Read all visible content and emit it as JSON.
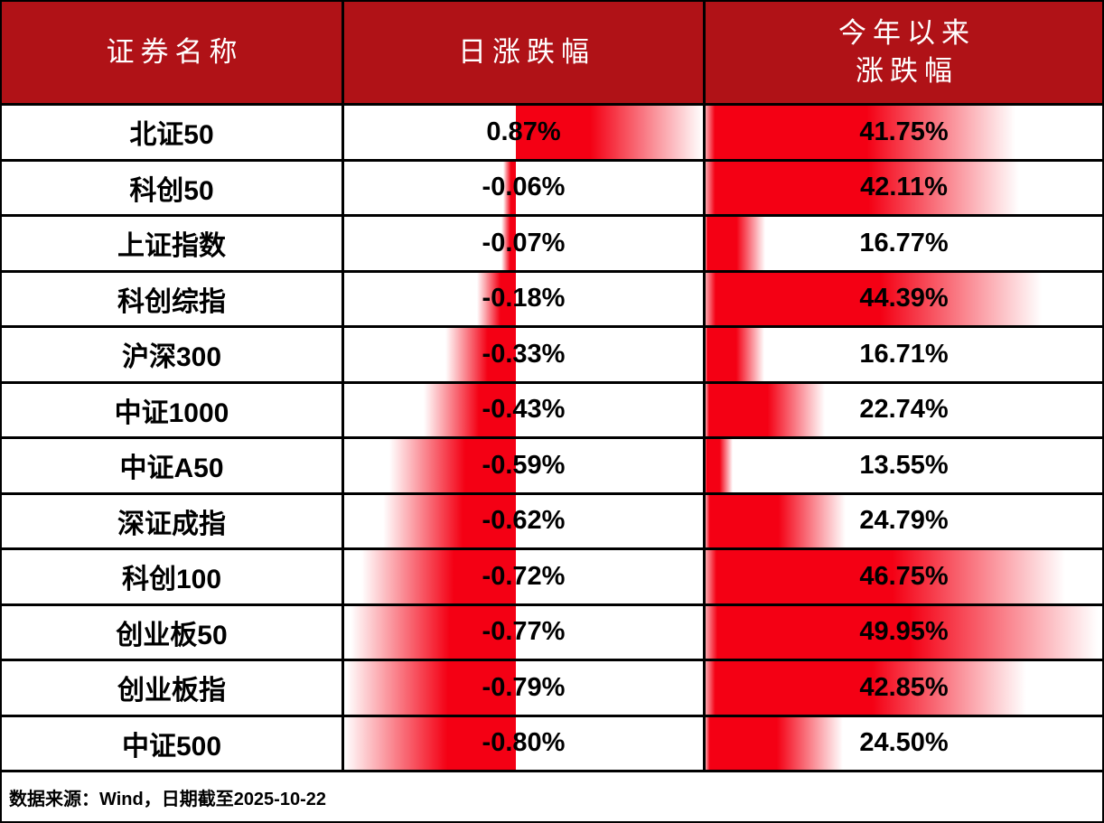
{
  "header": {
    "col_name": "证券名称",
    "col_daily": "日涨跌幅",
    "col_ytd_line1": "今年以来",
    "col_ytd_line2": "涨跌幅"
  },
  "footer": {
    "source_note": "数据来源：Wind，日期截至2025-10-22"
  },
  "colors": {
    "header_bg": "#b01217",
    "header_text": "#ffffff",
    "bar_red": "#f40014",
    "grid": "#000000",
    "body_text": "#000000"
  },
  "chart_data": {
    "type": "table",
    "title": "",
    "columns": [
      "证券名称",
      "日涨跌幅",
      "今年以来涨跌幅"
    ],
    "rows": [
      {
        "name": "北证50",
        "daily": 0.87,
        "daily_label": "0.87%",
        "ytd": 41.75,
        "ytd_label": "41.75%"
      },
      {
        "name": "科创50",
        "daily": -0.06,
        "daily_label": "-0.06%",
        "ytd": 42.11,
        "ytd_label": "42.11%"
      },
      {
        "name": "上证指数",
        "daily": -0.07,
        "daily_label": "-0.07%",
        "ytd": 16.77,
        "ytd_label": "16.77%"
      },
      {
        "name": "科创综指",
        "daily": -0.18,
        "daily_label": "-0.18%",
        "ytd": 44.39,
        "ytd_label": "44.39%"
      },
      {
        "name": "沪深300",
        "daily": -0.33,
        "daily_label": "-0.33%",
        "ytd": 16.71,
        "ytd_label": "16.71%"
      },
      {
        "name": "中证1000",
        "daily": -0.43,
        "daily_label": "-0.43%",
        "ytd": 22.74,
        "ytd_label": "22.74%"
      },
      {
        "name": "中证A50",
        "daily": -0.59,
        "daily_label": "-0.59%",
        "ytd": 13.55,
        "ytd_label": "13.55%"
      },
      {
        "name": "深证成指",
        "daily": -0.62,
        "daily_label": "-0.62%",
        "ytd": 24.79,
        "ytd_label": "24.79%"
      },
      {
        "name": "科创100",
        "daily": -0.72,
        "daily_label": "-0.72%",
        "ytd": 46.75,
        "ytd_label": "46.75%"
      },
      {
        "name": "创业板50",
        "daily": -0.77,
        "daily_label": "-0.77%",
        "ytd": 49.95,
        "ytd_label": "49.95%"
      },
      {
        "name": "创业板指",
        "daily": -0.79,
        "daily_label": "-0.79%",
        "ytd": 42.85,
        "ytd_label": "42.85%"
      },
      {
        "name": "中证500",
        "daily": -0.8,
        "daily_label": "-0.80%",
        "ytd": 24.5,
        "ytd_label": "24.50%"
      }
    ],
    "bar_style": "excel-style red gradient data bars",
    "daily_axis": {
      "min": -0.8,
      "max": 0.87,
      "zero_axis": "inside column"
    },
    "ytd_axis": {
      "min": 13.55,
      "max": 49.95,
      "anchor": "left edge of column"
    }
  }
}
